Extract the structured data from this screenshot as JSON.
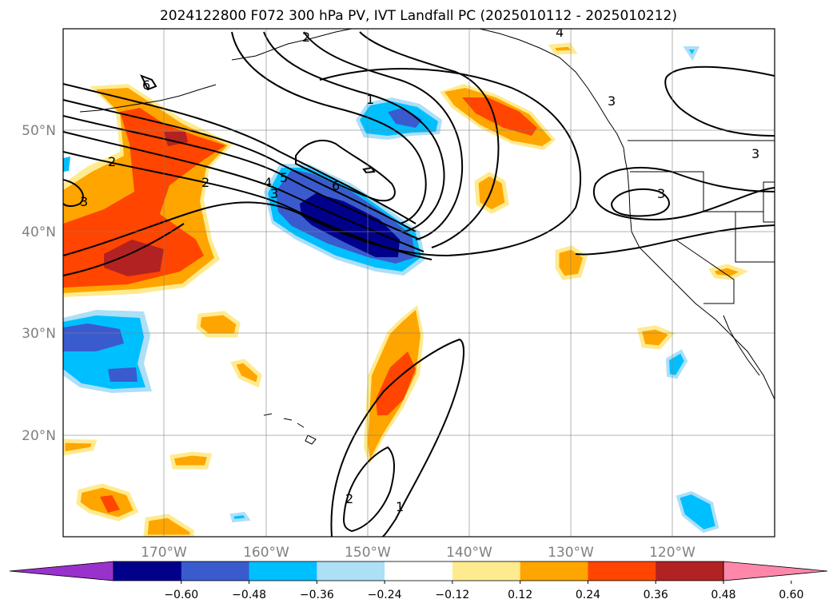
{
  "title": "2024122800 F072 300 hPa PV, IVT Landfall PC (2025010112 - 2025010212)",
  "map": {
    "lat_labels": [
      "50°N",
      "40°N",
      "30°N",
      "20°N"
    ],
    "lon_labels": [
      "170°W",
      "160°W",
      "150°W",
      "140°W",
      "130°W",
      "120°W"
    ],
    "gridlines": true
  },
  "contour_labels": [
    "6",
    "2",
    "3",
    "2",
    "4",
    "5",
    "3",
    "6",
    "1",
    "3",
    "2",
    "3",
    "3",
    "4",
    "2",
    "1"
  ],
  "colorbar": {
    "extend": "both",
    "bins": [
      "#9932CC",
      "#00008B",
      "#3A5BCD",
      "#00BFFF",
      "#ADDFF7",
      "#FFFFFF",
      "#FFEB8F",
      "#FFA500",
      "#FF4500",
      "#B22222",
      "#FF88AA"
    ],
    "ticks": [
      "−0.60",
      "−0.48",
      "−0.36",
      "−0.24",
      "−0.12",
      "0.12",
      "0.24",
      "0.36",
      "0.48",
      "0.60"
    ]
  }
}
